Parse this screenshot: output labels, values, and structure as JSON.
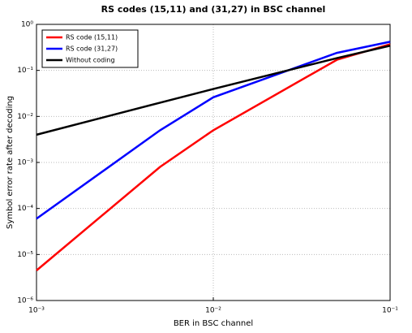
{
  "chart_data": {
    "type": "line",
    "title": "RS codes (15,11) and (31,27) in BSC channel",
    "xlabel": "BER in BSC channel",
    "ylabel": "Symbol error rate after decoding",
    "x": [
      0.001,
      0.005,
      0.01,
      0.05,
      0.1
    ],
    "series": [
      {
        "name": "RS code (15,11)",
        "color": "#ff0000",
        "values": [
          4.5e-06,
          0.0008,
          0.005,
          0.17,
          0.37
        ]
      },
      {
        "name": "RS code (31,27)",
        "color": "#0000ff",
        "values": [
          6e-05,
          0.005,
          0.026,
          0.24,
          0.42
        ]
      },
      {
        "name": "Without coding",
        "color": "#000000",
        "values": [
          0.004,
          0.0199,
          0.0394,
          0.185,
          0.344
        ]
      }
    ],
    "xscale": "log",
    "yscale": "log",
    "xlim": [
      0.001,
      0.1
    ],
    "ylim": [
      1e-06,
      1
    ],
    "xticks": [
      {
        "value": 0.001,
        "label": "10⁻³"
      },
      {
        "value": 0.01,
        "label": "10⁻²"
      },
      {
        "value": 0.1,
        "label": "10⁻¹"
      }
    ],
    "yticks": [
      {
        "value": 1e-06,
        "label": "10⁻⁶"
      },
      {
        "value": 1e-05,
        "label": "10⁻⁵"
      },
      {
        "value": 0.0001,
        "label": "10⁻⁴"
      },
      {
        "value": 0.001,
        "label": "10⁻³"
      },
      {
        "value": 0.01,
        "label": "10⁻²"
      },
      {
        "value": 0.1,
        "label": "10⁻¹"
      },
      {
        "value": 1,
        "label": "10⁰"
      }
    ],
    "grid": true,
    "legend": "upper-left"
  }
}
